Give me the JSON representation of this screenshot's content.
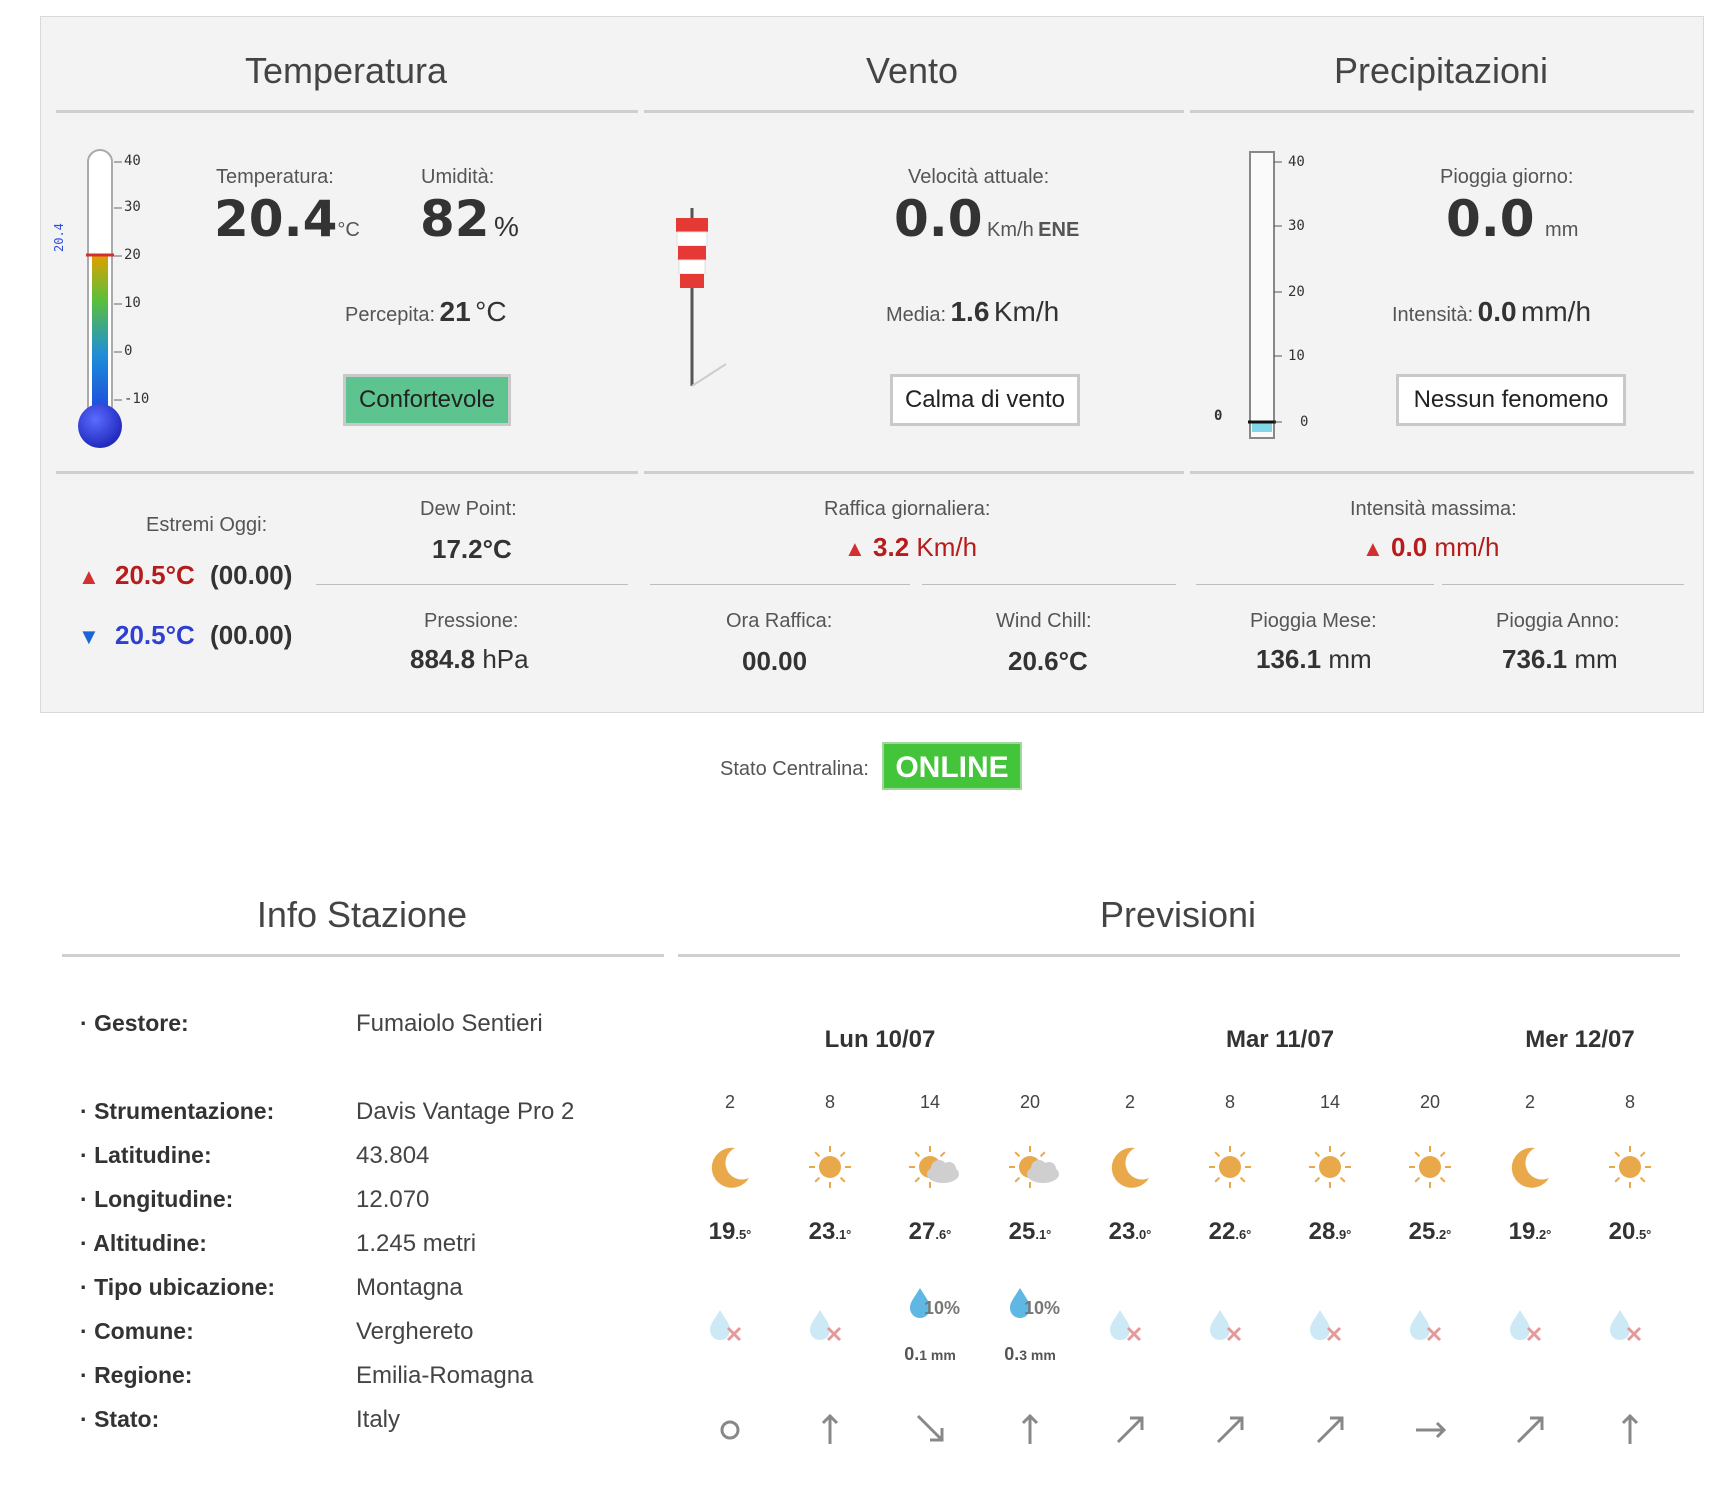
{
  "sections": {
    "temperatura": "Temperatura",
    "vento": "Vento",
    "precipitazioni": "Precipitazioni",
    "info": "Info Stazione",
    "previsioni": "Previsioni"
  },
  "temperature": {
    "label": "Temperatura:",
    "value": "20.4",
    "unit": "°C",
    "humidity_label": "Umidità:",
    "humidity_value": "82",
    "humidity_unit": "%",
    "perceived_label": "Percepita:",
    "perceived_value": "21",
    "perceived_unit": "°C",
    "comfort": "Confortevole",
    "comfort_color": "#5ec48f",
    "thermo_marker": "20.4",
    "thermo_ticks": [
      "40",
      "30",
      "20",
      "10",
      "0",
      "-10"
    ],
    "thermo_level": 20.4,
    "extremes_label": "Estremi Oggi:",
    "max_value": "20.5°C",
    "max_time": "(00.00)",
    "min_value": "20.5°C",
    "min_time": "(00.00)",
    "dew_label": "Dew Point:",
    "dew_value": "17.2°C",
    "pressure_label": "Pressione:",
    "pressure_value": "884.8",
    "pressure_unit": "hPa"
  },
  "wind": {
    "speed_label": "Velocità attuale:",
    "speed_value": "0.0",
    "speed_unit": "Km/h",
    "direction": "ENE",
    "avg_label": "Media:",
    "avg_value": "1.6",
    "avg_unit": "Km/h",
    "status": "Calma di vento",
    "gust_label": "Raffica giornaliera:",
    "gust_value": "3.2",
    "gust_unit": "Km/h",
    "gust_time_label": "Ora Raffica:",
    "gust_time_value": "00.00",
    "chill_label": "Wind Chill:",
    "chill_value": "20.6°C"
  },
  "rain": {
    "day_label": "Pioggia giorno:",
    "day_value": "0.0",
    "day_unit": "mm",
    "rate_label": "Intensità:",
    "rate_value": "0.0",
    "rate_unit": "mm/h",
    "status": "Nessun fenomeno",
    "gauge_marker": "0",
    "gauge_ticks": [
      "40",
      "30",
      "20",
      "10",
      "0"
    ],
    "max_rate_label": "Intensità massima:",
    "max_rate_value": "0.0",
    "max_rate_unit": "mm/h",
    "month_label": "Pioggia Mese:",
    "month_value": "136.1",
    "month_unit": "mm",
    "year_label": "Pioggia Anno:",
    "year_value": "736.1",
    "year_unit": "mm"
  },
  "station_status": {
    "label": "Stato Centralina:",
    "value": "ONLINE",
    "color": "#44c43a"
  },
  "info": [
    {
      "key": "Gestore:",
      "value": "Fumaiolo Sentieri"
    },
    {
      "key": "Strumentazione:",
      "value": "Davis Vantage Pro 2"
    },
    {
      "key": "Latitudine:",
      "value": "43.804"
    },
    {
      "key": "Longitudine:",
      "value": "12.070"
    },
    {
      "key": "Altitudine:",
      "value": "1.245 metri"
    },
    {
      "key": "Tipo ubicazione:",
      "value": "Montagna"
    },
    {
      "key": "Comune:",
      "value": "Verghereto"
    },
    {
      "key": "Regione:",
      "value": "Emilia-Romagna"
    },
    {
      "key": "Stato:",
      "value": "Italy"
    }
  ],
  "forecast": {
    "days": [
      "Lun 10/07",
      "Mar 11/07",
      "Mer 12/07"
    ],
    "slots": [
      {
        "hour": "2",
        "icon": "moon-icon",
        "temp_int": "19",
        "temp_dec": ".5°",
        "rain_pct": "",
        "rain_mm": "",
        "wind": "calm-icon"
      },
      {
        "hour": "8",
        "icon": "sun-icon",
        "temp_int": "23",
        "temp_dec": ".1°",
        "rain_pct": "",
        "rain_mm": "",
        "wind": "arrow-north-icon"
      },
      {
        "hour": "14",
        "icon": "sun-cloud-icon",
        "temp_int": "27",
        "temp_dec": ".6°",
        "rain_pct": "10%",
        "rain_mm_int": "0.",
        "rain_mm": "1 mm",
        "wind": "arrow-southeast-icon"
      },
      {
        "hour": "20",
        "icon": "sun-cloud-icon",
        "temp_int": "25",
        "temp_dec": ".1°",
        "rain_pct": "10%",
        "rain_mm_int": "0.",
        "rain_mm": "3 mm",
        "wind": "arrow-north-icon"
      },
      {
        "hour": "2",
        "icon": "moon-icon",
        "temp_int": "23",
        "temp_dec": ".0°",
        "rain_pct": "",
        "rain_mm": "",
        "wind": "arrow-northeast-icon"
      },
      {
        "hour": "8",
        "icon": "sun-icon",
        "temp_int": "22",
        "temp_dec": ".6°",
        "rain_pct": "",
        "rain_mm": "",
        "wind": "arrow-northeast-icon"
      },
      {
        "hour": "14",
        "icon": "sun-icon",
        "temp_int": "28",
        "temp_dec": ".9°",
        "rain_pct": "",
        "rain_mm": "",
        "wind": "arrow-northeast-icon"
      },
      {
        "hour": "20",
        "icon": "sun-icon",
        "temp_int": "25",
        "temp_dec": ".2°",
        "rain_pct": "",
        "rain_mm": "",
        "wind": "arrow-east-icon"
      },
      {
        "hour": "2",
        "icon": "moon-icon",
        "temp_int": "19",
        "temp_dec": ".2°",
        "rain_pct": "",
        "rain_mm": "",
        "wind": "arrow-northeast-icon"
      },
      {
        "hour": "8",
        "icon": "sun-icon",
        "temp_int": "20",
        "temp_dec": ".5°",
        "rain_pct": "",
        "rain_mm": "",
        "wind": "arrow-north-icon"
      }
    ]
  },
  "colors": {
    "max_red": "#b71c1c",
    "min_blue": "#2f3fd3",
    "sun": "#e9a94a",
    "drop": "#5fb7e4"
  }
}
